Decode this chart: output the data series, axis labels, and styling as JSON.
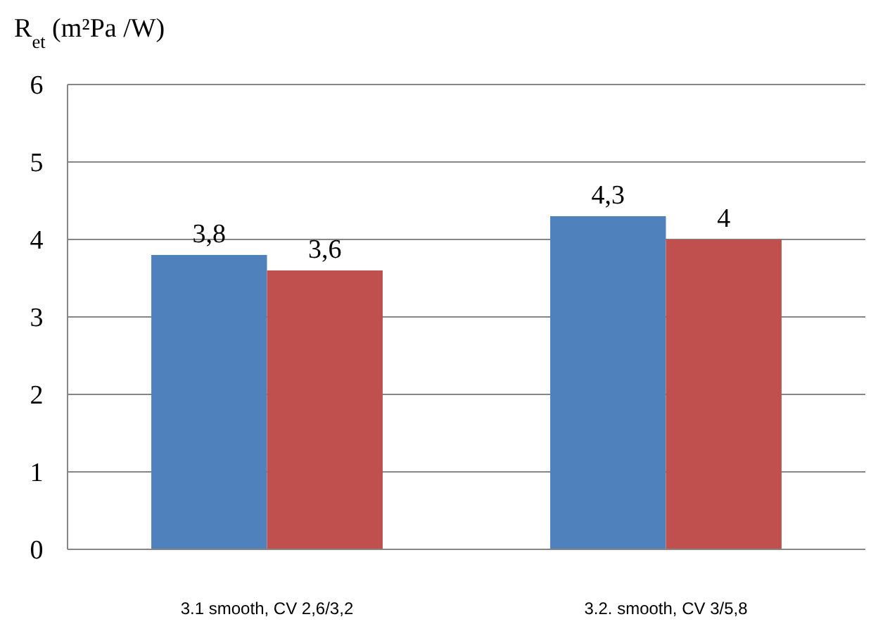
{
  "chart_data": {
    "type": "bar",
    "ylabel": "R$_{et}$ (m²Pa /W)",
    "categories": [
      "3.1 smooth, CV 2,6/3,2",
      "3.2. smooth, CV 3/5,8"
    ],
    "series": [
      {
        "color": "#4f81bd",
        "values": [
          3.8,
          4.3
        ],
        "value_labels": [
          "3,8",
          "4,3"
        ]
      },
      {
        "color": "#c0504d",
        "values": [
          3.6,
          4
        ],
        "value_labels": [
          "3,6",
          "4"
        ]
      }
    ],
    "ylim": [
      0,
      6
    ],
    "yticks": [
      0,
      1,
      2,
      3,
      4,
      5,
      6
    ],
    "grid": "y"
  }
}
